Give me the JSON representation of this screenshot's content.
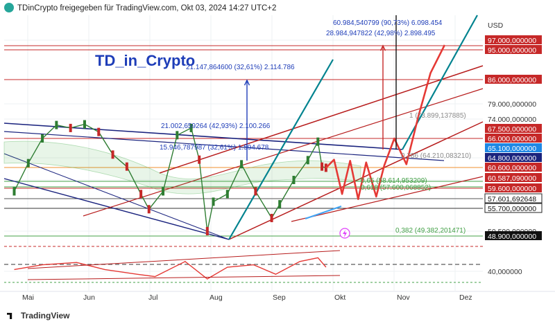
{
  "header": {
    "attribution": "TDinCrypto freigegeben für TradingView.com, Okt 03, 2024 14:27 UTC+2"
  },
  "branding": {
    "watermark": "TD_in_Crypto",
    "footer_logo": "TradingView"
  },
  "colors": {
    "red": "#c62828",
    "dark_red": "#b71c1c",
    "navy": "#1a237e",
    "teal": "#00838f",
    "blue_label": "#1e3db8",
    "green_fib": "#43a047",
    "orange": "#ef8f2c"
  },
  "chart_data": {
    "type": "line",
    "currency": "USD",
    "xlabels": [
      "Mai",
      "Jun",
      "Jul",
      "Aug",
      "Sep",
      "Okt",
      "Nov",
      "Dez"
    ],
    "price_scale": {
      "min": 40000,
      "max": 100000,
      "ticks": [
        97000,
        95000,
        86000,
        79000,
        74000,
        67500,
        66000,
        65100,
        64800,
        60600,
        60587.09,
        59600,
        57601.692648,
        55700,
        50500,
        48900,
        40000
      ]
    },
    "price_tags": [
      {
        "label": "USD",
        "style": "plain"
      },
      {
        "label": "97.000,000000",
        "style": "red"
      },
      {
        "label": "95.000,000000",
        "style": "red"
      },
      {
        "label": "86.000,000000",
        "style": "red"
      },
      {
        "label": "79.000,000000",
        "style": "plain"
      },
      {
        "label": "74.000,000000",
        "style": "plain"
      },
      {
        "label": "67.500,000000",
        "style": "red"
      },
      {
        "label": "66.000,000000",
        "style": "red"
      },
      {
        "label": "65.100,000000",
        "style": "blue"
      },
      {
        "label": "64.800,000000",
        "style": "navy"
      },
      {
        "label": "60.600,000000",
        "style": "red"
      },
      {
        "label": "60.587,090000",
        "style": "red"
      },
      {
        "label": "59.600,000000",
        "style": "red"
      },
      {
        "label": "57.601,692648",
        "style": "plainbox"
      },
      {
        "label": "55.700,000000",
        "style": "plainbox"
      },
      {
        "label": "50.500,000000",
        "style": "plain"
      },
      {
        "label": "48.900,000000",
        "style": "black"
      },
      {
        "label": "40,000000",
        "style": "plain"
      }
    ],
    "annotations": [
      {
        "text": "60.984,540799 (90,73%) 6.098.454",
        "color": "blue"
      },
      {
        "text": "28.984,947822 (42,98%) 2.898.495",
        "color": "blue"
      },
      {
        "text": "21.147,864600 (32,61%) 2.114.786",
        "color": "blue"
      },
      {
        "text": "21.002,659264 (42,93%) 2.100.266",
        "color": "blue"
      },
      {
        "text": "15.946,787987 (32,61%) 1.594.678",
        "color": "blue"
      },
      {
        "text": "1 (73.899,137885)",
        "color": "gray"
      },
      {
        "text": "0,786 (64.210,083210)",
        "color": "gray"
      },
      {
        "text": "0,65 (58.614,953209)",
        "color": "green"
      },
      {
        "text": "0,618 (57.600,068852)",
        "color": "green"
      },
      {
        "text": "0,382 (49.382,201471)",
        "color": "green"
      }
    ],
    "series": [
      {
        "x": [
          "2024-05-01",
          "2024-05-08",
          "2024-05-15",
          "2024-05-22",
          "2024-05-29",
          "2024-06-05",
          "2024-06-12",
          "2024-06-19",
          "2024-06-26",
          "2024-07-03",
          "2024-07-07",
          "2024-07-14",
          "2024-07-21",
          "2024-07-28",
          "2024-08-01",
          "2024-08-05",
          "2024-08-08",
          "2024-08-15",
          "2024-08-22",
          "2024-08-29",
          "2024-09-06",
          "2024-09-10",
          "2024-09-17",
          "2024-09-24",
          "2024-09-29",
          "2024-10-01",
          "2024-10-03"
        ],
        "values": [
          59000,
          62500,
          66000,
          70000,
          68000,
          70500,
          67000,
          65000,
          61000,
          58500,
          55500,
          59000,
          66500,
          68000,
          64000,
          50500,
          57000,
          58500,
          62000,
          59000,
          53500,
          56500,
          60000,
          63800,
          65800,
          61000,
          60587
        ]
      }
    ],
    "projection": {
      "x": [
        "2024-10-03",
        "2024-10-07",
        "2024-10-11",
        "2024-10-15",
        "2024-10-19",
        "2024-10-23",
        "2024-10-28",
        "2024-11-01",
        "2024-11-06",
        "2024-11-12",
        "2024-11-18",
        "2024-11-24",
        "2024-12-01"
      ],
      "values": [
        60587,
        64000,
        58500,
        63500,
        57500,
        62800,
        58000,
        61500,
        66000,
        62000,
        75000,
        88000,
        96000
      ]
    },
    "oscillator": {
      "levels": [
        70,
        50,
        30
      ],
      "x": [
        "2024-05-01",
        "2024-05-15",
        "2024-06-01",
        "2024-06-15",
        "2024-07-01",
        "2024-07-10",
        "2024-07-25",
        "2024-08-05",
        "2024-08-15",
        "2024-08-28",
        "2024-09-08",
        "2024-09-20",
        "2024-09-29",
        "2024-10-03"
      ],
      "values": [
        45,
        55,
        60,
        45,
        35,
        30,
        62,
        25,
        50,
        55,
        35,
        62,
        70,
        50
      ]
    }
  }
}
